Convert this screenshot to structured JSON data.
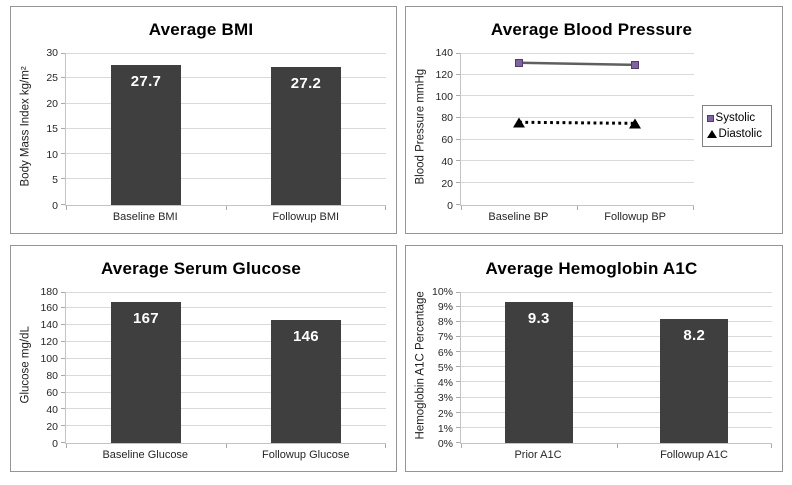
{
  "page": {
    "background": "#ffffff",
    "panel_border": "#959595",
    "gridline_color": "#d9d9d9"
  },
  "chart_data": [
    {
      "type": "bar",
      "title": "Average BMI",
      "ylabel": "Body Mass Index kg/m²",
      "categories": [
        "Baseline BMI",
        "Followup BMI"
      ],
      "values": [
        27.7,
        27.2
      ],
      "value_labels": [
        "27.7",
        "27.2"
      ],
      "ylim": [
        0,
        30
      ],
      "ytick_step": 5,
      "yticks": [
        "0",
        "5",
        "10",
        "15",
        "20",
        "25",
        "30"
      ],
      "grid": true,
      "bar_color": "#3f3f3f",
      "label_color": "#ffffff",
      "legend_position": "none"
    },
    {
      "type": "line",
      "title": "Average Blood Pressure",
      "ylabel": "Blood Pressure mmHg",
      "categories": [
        "Baseline BP",
        "Followup BP"
      ],
      "series": [
        {
          "name": "Systolic",
          "values": [
            131,
            129
          ],
          "line_color": "#5f5f5f",
          "line_style": "solid",
          "marker": "square",
          "marker_color": "#8064a2"
        },
        {
          "name": "Diastolic",
          "values": [
            76,
            75
          ],
          "line_color": "#000000",
          "line_style": "dotted",
          "marker": "triangle",
          "marker_color": "#000000"
        }
      ],
      "ylim": [
        0,
        140
      ],
      "ytick_step": 20,
      "yticks": [
        "0",
        "20",
        "40",
        "60",
        "80",
        "100",
        "120",
        "140"
      ],
      "grid": true,
      "legend_position": "right"
    },
    {
      "type": "bar",
      "title": "Average Serum Glucose",
      "ylabel": "Glucose mg/dL",
      "categories": [
        "Baseline Glucose",
        "Followup Glucose"
      ],
      "values": [
        167,
        146
      ],
      "value_labels": [
        "167",
        "146"
      ],
      "ylim": [
        0,
        180
      ],
      "ytick_step": 20,
      "yticks": [
        "0",
        "20",
        "40",
        "60",
        "80",
        "100",
        "120",
        "140",
        "160",
        "180"
      ],
      "grid": true,
      "bar_color": "#3f3f3f",
      "label_color": "#ffffff",
      "legend_position": "none"
    },
    {
      "type": "bar",
      "title": "Average Hemoglobin A1C",
      "ylabel": "Hemoglobin A1C Percentage",
      "categories": [
        "Prior A1C",
        "Followup A1C"
      ],
      "values": [
        9.3,
        8.2
      ],
      "value_labels": [
        "9.3",
        "8.2"
      ],
      "ylim": [
        0,
        10
      ],
      "ytick_step": 1,
      "yticks": [
        "0%",
        "1%",
        "2%",
        "3%",
        "4%",
        "5%",
        "6%",
        "7%",
        "8%",
        "9%",
        "10%"
      ],
      "grid": true,
      "bar_color": "#3f3f3f",
      "label_color": "#ffffff",
      "legend_position": "none"
    }
  ]
}
